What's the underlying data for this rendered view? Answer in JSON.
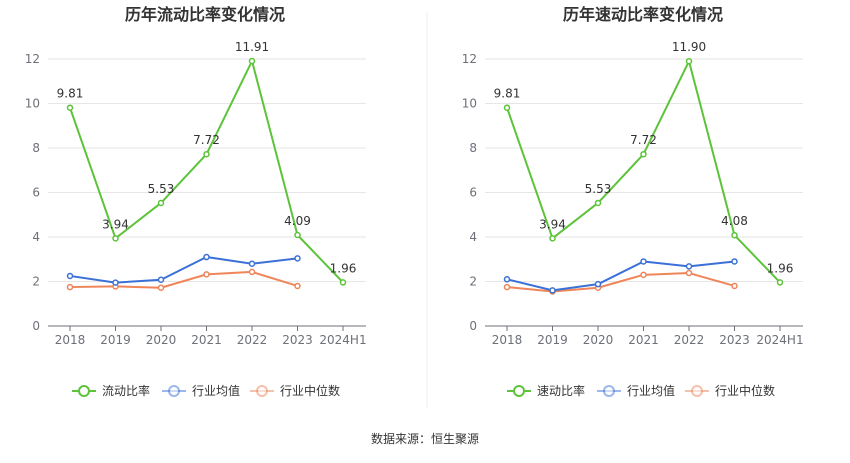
{
  "source": "数据来源：恒生聚源",
  "chart_data": [
    {
      "type": "line",
      "title": "历年流动比率变化情况",
      "categories": [
        "2018",
        "2019",
        "2020",
        "2021",
        "2022",
        "2023",
        "2024H1"
      ],
      "ylim": [
        0,
        12
      ],
      "yticks": [
        0,
        2,
        4,
        6,
        8,
        10,
        12
      ],
      "grid": true,
      "legend_position": "bottom",
      "series": [
        {
          "name": "流动比率",
          "color": "#5cc33a",
          "values": [
            9.81,
            3.94,
            5.53,
            7.72,
            11.91,
            4.09,
            1.96
          ],
          "labels": [
            "9.81",
            "3.94",
            "5.53",
            "7.72",
            "11.91",
            "4.09",
            "1.96"
          ]
        },
        {
          "name": "行业均值",
          "color": "#3b71d6",
          "values": [
            2.25,
            1.95,
            2.08,
            3.1,
            2.8,
            3.04,
            null
          ]
        },
        {
          "name": "行业中位数",
          "color": "#ef8558",
          "values": [
            1.75,
            1.78,
            1.72,
            2.32,
            2.43,
            1.8,
            null
          ]
        }
      ]
    },
    {
      "type": "line",
      "title": "历年速动比率变化情况",
      "categories": [
        "2018",
        "2019",
        "2020",
        "2021",
        "2022",
        "2023",
        "2024H1"
      ],
      "ylim": [
        0,
        12
      ],
      "yticks": [
        0,
        2,
        4,
        6,
        8,
        10,
        12
      ],
      "grid": true,
      "legend_position": "bottom",
      "series": [
        {
          "name": "速动比率",
          "color": "#5cc33a",
          "values": [
            9.81,
            3.94,
            5.53,
            7.72,
            11.9,
            4.08,
            1.96
          ],
          "labels": [
            "9.81",
            "3.94",
            "5.53",
            "7.72",
            "11.90",
            "4.08",
            "1.96"
          ]
        },
        {
          "name": "行业均值",
          "color": "#3b71d6",
          "values": [
            2.1,
            1.6,
            1.88,
            2.9,
            2.68,
            2.9,
            null
          ]
        },
        {
          "name": "行业中位数",
          "color": "#ef8558",
          "values": [
            1.75,
            1.55,
            1.72,
            2.3,
            2.38,
            1.8,
            null
          ]
        }
      ]
    }
  ]
}
